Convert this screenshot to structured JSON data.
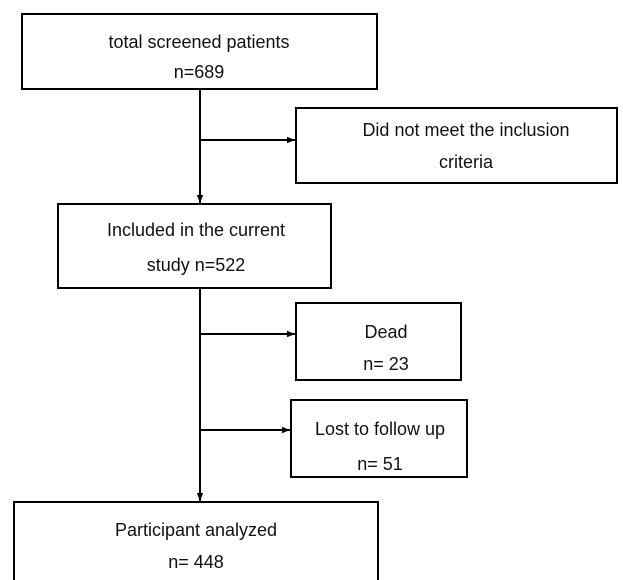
{
  "nodes": [
    {
      "lines": [
        "total screened patients",
        "n=689"
      ]
    },
    {
      "lines": [
        "Did not meet the inclusion",
        "criteria"
      ]
    },
    {
      "lines": [
        "Included in the current",
        "study n=522"
      ]
    },
    {
      "lines": [
        "Dead",
        "n= 23"
      ]
    },
    {
      "lines": [
        "Lost to follow up",
        "n= 51"
      ]
    },
    {
      "lines": [
        "Participant analyzed",
        "n= 448"
      ]
    }
  ]
}
